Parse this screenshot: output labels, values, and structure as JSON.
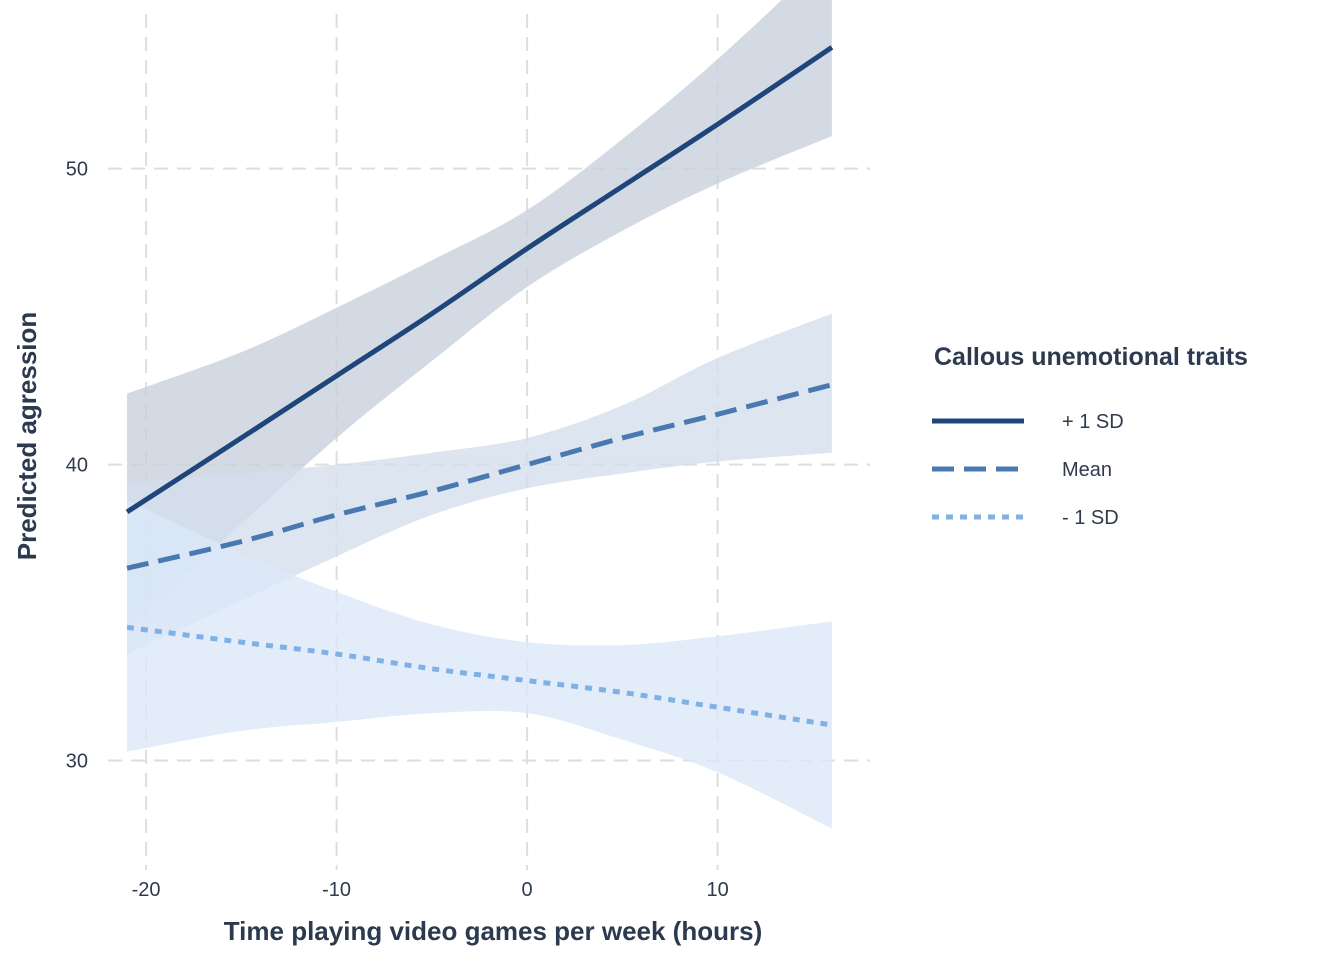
{
  "chart_data": {
    "type": "line",
    "xlabel": "Time playing video games per week (hours)",
    "ylabel": "Predicted agression",
    "xlim": [
      -22,
      18
    ],
    "ylim": [
      26.3,
      55.7
    ],
    "x_ticks": [
      -20,
      -10,
      0,
      10
    ],
    "y_ticks": [
      30,
      40,
      50
    ],
    "grid": true,
    "legend": {
      "title": "Callous unemotional traits",
      "position": "right"
    },
    "series": [
      {
        "name": "+ 1 SD",
        "color": "#1f467a",
        "line_style": "solid",
        "x": [
          -21,
          -15,
          -10,
          -5,
          0,
          5,
          10,
          16
        ],
        "y": [
          38.4,
          40.9,
          43.0,
          45.1,
          47.3,
          49.4,
          51.5,
          54.1
        ],
        "lower": [
          34.5,
          38.0,
          40.9,
          43.5,
          46.0,
          47.9,
          49.5,
          51.1
        ],
        "upper": [
          42.4,
          43.8,
          45.3,
          46.9,
          48.6,
          51.0,
          53.7,
          57.3
        ],
        "band_color": "#c6cfdb"
      },
      {
        "name": "Mean",
        "color": "#4a78b0",
        "line_style": "dashed",
        "x": [
          -21,
          -15,
          -10,
          -5,
          0,
          5,
          10,
          16
        ],
        "y": [
          36.5,
          37.4,
          38.3,
          39.1,
          40.0,
          40.9,
          41.7,
          42.7
        ],
        "lower": [
          33.6,
          35.4,
          36.9,
          38.3,
          39.2,
          39.7,
          40.1,
          40.4
        ],
        "upper": [
          39.4,
          39.7,
          40.0,
          40.4,
          40.9,
          42.0,
          43.6,
          45.1
        ],
        "band_color": "#d4deed"
      },
      {
        "name": "- 1 SD",
        "color": "#7fb1e6",
        "line_style": "dotted",
        "x": [
          -21,
          -15,
          -10,
          -5,
          0,
          5,
          10,
          16
        ],
        "y": [
          34.5,
          34.0,
          33.6,
          33.1,
          32.7,
          32.3,
          31.8,
          31.2
        ],
        "lower": [
          30.3,
          31.0,
          31.3,
          31.6,
          31.6,
          30.7,
          29.6,
          27.7
        ],
        "upper": [
          38.8,
          37.0,
          35.7,
          34.6,
          34.0,
          33.9,
          34.2,
          34.7
        ],
        "band_color": "#dbe8f8"
      }
    ]
  }
}
